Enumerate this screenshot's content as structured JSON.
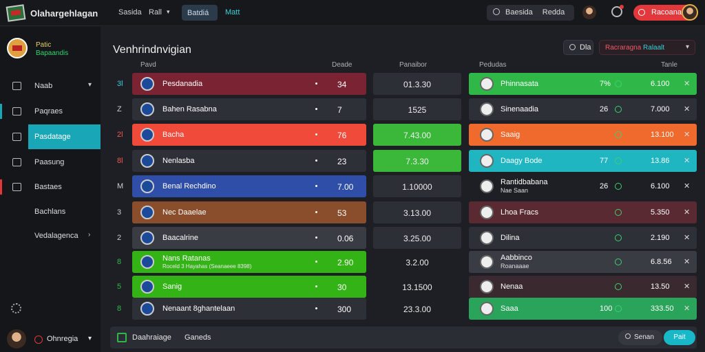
{
  "app": {
    "title": "Olahargehlagan"
  },
  "topnav": {
    "item1": "Sasida",
    "item2": "Rall",
    "pill": "Batdiá",
    "item3": "Matt",
    "search": "Baesida",
    "search_btn": "Redda",
    "red_btn": "Racoana"
  },
  "sidebar": {
    "user_name": "Patic",
    "user_sub": "Bapaandis",
    "items": [
      "Naab",
      "Paqraes",
      "Pasdatage",
      "Paasung",
      "Bastaes",
      "Bachlans",
      "Vedalagenca"
    ],
    "footer_user": "Ohnregia"
  },
  "main": {
    "title": "Venhrindnvigian",
    "btn": "Dla",
    "select_a": "Racraragna",
    "select_b": "Ralaalt"
  },
  "headers": {
    "left": "Pavd",
    "mid": "Deade",
    "odds": "Panaibor",
    "right": "Pedudas",
    "right2": "Tanle"
  },
  "left_rows": [
    {
      "idx": "3l",
      "name": "Pesdanadia",
      "val": "34"
    },
    {
      "idx": "Z",
      "name": "Bahen Rasabna",
      "val": "7"
    },
    {
      "idx": "2l",
      "name": "Bacha",
      "val": "76"
    },
    {
      "idx": "8l",
      "name": "Nenlasba",
      "val": "23"
    },
    {
      "idx": "M",
      "name": "Benal Rechdino",
      "val": "7.00"
    },
    {
      "idx": "3",
      "name": "Nec Daaelae",
      "val": "53"
    },
    {
      "idx": "2",
      "name": "Baacalrine",
      "val": "0.06"
    },
    {
      "idx": "8",
      "name": "Nans Ratanas",
      "sub": "Roceld 3 Hayahas (Seanaeee 8398)",
      "val": "2.90"
    },
    {
      "idx": "5",
      "name": "Sanig",
      "val": "30"
    },
    {
      "idx": "8",
      "name": "Nenaant 8ghantelaan",
      "val": "300"
    }
  ],
  "odds": [
    "01.3.30",
    "1525",
    "7.43.00",
    "7.3.30",
    "1.10000",
    "3.13.00",
    "3.25.00",
    "3.2.00",
    "13.1500",
    "23.3.00"
  ],
  "right_rows": [
    {
      "name": "Phinnasata",
      "pct": "7%",
      "val": "6.100"
    },
    {
      "name": "Sinenaadia",
      "pct": "26",
      "val": "7.000"
    },
    {
      "name": "Saaig",
      "pct": "",
      "val": "13.100"
    },
    {
      "name": "Daagy Bode",
      "pct": "77",
      "val": "13.86"
    },
    {
      "name": "Rantidbabana",
      "sub": "Nae Saan",
      "pct": "26",
      "val": "6.100"
    },
    {
      "name": "Lhoa Fracs",
      "pct": "",
      "val": "5.350"
    },
    {
      "name": "Dilina",
      "pct": "",
      "val": "2.190"
    },
    {
      "name": "Aabbinco",
      "sub": "Roanaaae",
      "pct": "",
      "val": "6.8.56"
    },
    {
      "name": "Nenaa",
      "pct": "",
      "val": "13.50"
    },
    {
      "name": "Saaa",
      "pct": "100",
      "val": "333.50"
    }
  ],
  "bottom": {
    "tab1": "Daahraiage",
    "tab2": "Ganeds",
    "btn1": "Senan",
    "btn2": "Pait"
  },
  "colors": {
    "accent": "#19a7b8",
    "red": "#e3383b",
    "green": "#2fb848"
  }
}
